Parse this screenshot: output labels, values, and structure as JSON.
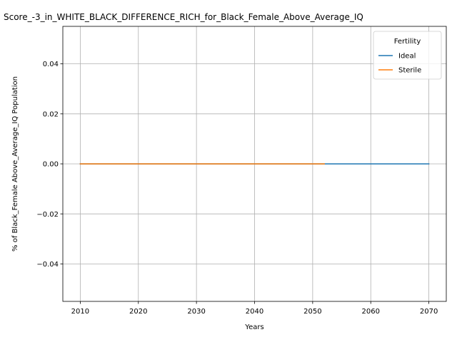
{
  "chart_data": {
    "type": "line",
    "title": "Score_-3_in_WHITE_BLACK_DIFFERENCE_RICH_for_Black_Female_Above_Average_IQ",
    "xlabel": "Years",
    "ylabel": "% of Black_Female Above_Average_IQ Population",
    "xlim": [
      2007,
      2073
    ],
    "ylim": [
      -0.055,
      0.055
    ],
    "x_ticks": [
      2010,
      2020,
      2030,
      2040,
      2050,
      2060,
      2070
    ],
    "y_ticks": [
      -0.04,
      -0.02,
      0.0,
      0.02,
      0.04
    ],
    "y_tick_labels": [
      "−0.04",
      "−0.02",
      "0.00",
      "0.02",
      "0.04"
    ],
    "grid": true,
    "legend": {
      "title": "Fertility",
      "placement": "top-right"
    },
    "series": [
      {
        "name": "Ideal",
        "color": "#1f77b4",
        "x": [
          2010,
          2070
        ],
        "y": [
          0,
          0
        ]
      },
      {
        "name": "Sterile",
        "color": "#ff7f0e",
        "x": [
          2010,
          2052
        ],
        "y": [
          0,
          0
        ]
      }
    ]
  }
}
